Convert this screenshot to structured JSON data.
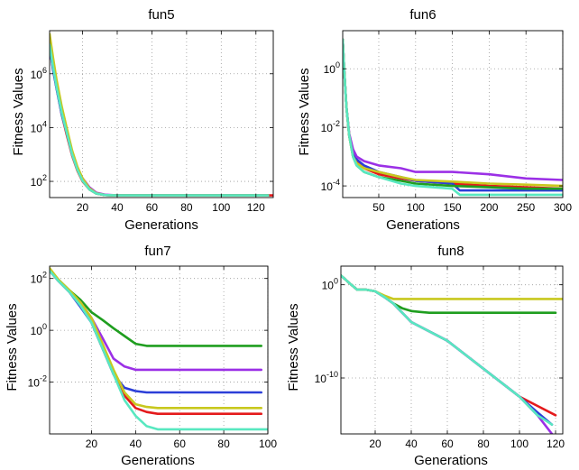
{
  "chart_data": [
    {
      "type": "line",
      "title": "fun5",
      "xlabel": "Generations",
      "ylabel": "Fitness Values",
      "yscale": "log",
      "xlim": [
        1,
        130
      ],
      "ylim": [
        25,
        40000000
      ],
      "xticks": [
        20,
        40,
        60,
        80,
        100,
        120
      ],
      "xtick_labels": [
        "20",
        "40",
        "60",
        "80",
        "100",
        "120"
      ],
      "yticks": [
        100,
        10000,
        1000000
      ],
      "ytick_labels": [
        "10^2",
        "10^4",
        "10^6"
      ],
      "grid": true,
      "series": [
        {
          "color": "#e41a1c",
          "x": [
            1,
            3,
            5,
            8,
            11,
            14,
            17,
            20,
            24,
            28,
            33,
            40,
            60,
            100,
            120,
            130
          ],
          "y": [
            10000000,
            1500000,
            300000,
            30000,
            5000,
            900,
            250,
            100,
            50,
            35,
            31,
            30,
            30,
            30,
            30,
            30
          ]
        },
        {
          "color": "#2b3ed8",
          "x": [
            1,
            3,
            5,
            8,
            11,
            14,
            17,
            20,
            24,
            28,
            33,
            40,
            60,
            100,
            120,
            127
          ],
          "y": [
            10000000,
            1400000,
            280000,
            30000,
            6000,
            1000,
            280,
            110,
            52,
            36,
            31,
            30,
            30,
            30,
            30,
            30
          ]
        },
        {
          "color": "#1f9e1f",
          "x": [
            1,
            3,
            5,
            8,
            11,
            14,
            17,
            20,
            24,
            28,
            33,
            40,
            60,
            100,
            120,
            127
          ],
          "y": [
            18000000,
            2500000,
            400000,
            45000,
            7000,
            1100,
            280,
            110,
            50,
            35,
            31,
            30,
            30,
            30,
            30,
            30
          ]
        },
        {
          "color": "#9b30e6",
          "x": [
            1,
            3,
            5,
            8,
            11,
            14,
            17,
            20,
            24,
            28,
            33,
            40,
            60,
            100,
            120,
            127
          ],
          "y": [
            15000000,
            2000000,
            350000,
            40000,
            7000,
            1200,
            320,
            130,
            60,
            38,
            32,
            30,
            30,
            30,
            30,
            30
          ]
        },
        {
          "color": "#c8c81e",
          "x": [
            1,
            3,
            5,
            8,
            11,
            14,
            17,
            20,
            24,
            28,
            33,
            40,
            60,
            100,
            120,
            127
          ],
          "y": [
            30000000,
            4000000,
            600000,
            60000,
            9000,
            1400,
            350,
            130,
            55,
            36,
            31,
            30,
            30,
            30,
            30,
            30
          ]
        },
        {
          "color": "#58e8c0",
          "x": [
            1,
            3,
            5,
            8,
            11,
            14,
            17,
            20,
            24,
            28,
            33,
            40,
            60,
            100,
            120,
            127
          ],
          "y": [
            12000000,
            1800000,
            320000,
            35000,
            6000,
            1000,
            270,
            105,
            50,
            35,
            31,
            30,
            30,
            30,
            30,
            30
          ]
        }
      ]
    },
    {
      "type": "line",
      "title": "fun6",
      "xlabel": "Generations",
      "ylabel": "Fitness Values",
      "yscale": "log",
      "xlim": [
        1,
        300
      ],
      "ylim": [
        4e-05,
        20
      ],
      "xticks": [
        50,
        100,
        150,
        200,
        250,
        300
      ],
      "xtick_labels": [
        "50",
        "100",
        "150",
        "200",
        "250",
        "300"
      ],
      "yticks": [
        0.0001,
        0.01,
        1
      ],
      "ytick_labels": [
        "10^-4",
        "10^-2",
        "10^0"
      ],
      "grid": true,
      "series": [
        {
          "color": "#e41a1c",
          "x": [
            1,
            3,
            6,
            10,
            15,
            20,
            30,
            50,
            80,
            100,
            150,
            200,
            250,
            300
          ],
          "y": [
            10,
            1,
            0.05,
            0.005,
            0.0012,
            0.0007,
            0.0004,
            0.00025,
            0.00018,
            0.00015,
            0.00012,
            0.0001,
            9e-05,
            8e-05
          ]
        },
        {
          "color": "#2b3ed8",
          "x": [
            1,
            3,
            6,
            10,
            15,
            20,
            30,
            50,
            80,
            100,
            150,
            160,
            200,
            250,
            300
          ],
          "y": [
            10,
            1,
            0.05,
            0.005,
            0.0015,
            0.0008,
            0.0005,
            0.0003,
            0.0002,
            0.00015,
            0.00012,
            7e-05,
            7e-05,
            7e-05,
            7e-05
          ]
        },
        {
          "color": "#1f9e1f",
          "x": [
            1,
            3,
            6,
            10,
            15,
            20,
            30,
            50,
            80,
            100,
            150,
            200,
            250,
            300
          ],
          "y": [
            10,
            1,
            0.05,
            0.005,
            0.001,
            0.0005,
            0.0003,
            0.0002,
            0.00015,
            0.00012,
            0.0001,
            9e-05,
            8e-05,
            8e-05
          ]
        },
        {
          "color": "#9b30e6",
          "x": [
            1,
            3,
            6,
            10,
            15,
            20,
            30,
            50,
            80,
            100,
            150,
            200,
            250,
            300
          ],
          "y": [
            10,
            1,
            0.05,
            0.006,
            0.0018,
            0.001,
            0.0007,
            0.0005,
            0.0004,
            0.0003,
            0.0003,
            0.00025,
            0.00018,
            0.00016
          ]
        },
        {
          "color": "#c8c81e",
          "x": [
            1,
            3,
            6,
            10,
            15,
            20,
            30,
            50,
            80,
            100,
            150,
            200,
            250,
            300
          ],
          "y": [
            10,
            1,
            0.05,
            0.005,
            0.001,
            0.0006,
            0.0004,
            0.0003,
            0.0002,
            0.00016,
            0.00014,
            0.00012,
            0.00011,
            0.0001
          ]
        },
        {
          "color": "#58e8c0",
          "x": [
            1,
            3,
            6,
            10,
            15,
            20,
            30,
            50,
            80,
            100,
            150,
            160,
            200,
            300
          ],
          "y": [
            10,
            1,
            0.05,
            0.005,
            0.001,
            0.0005,
            0.0003,
            0.0002,
            0.00012,
            0.0001,
            8e-05,
            5e-05,
            5e-05,
            5e-05
          ]
        }
      ]
    },
    {
      "type": "line",
      "title": "fun7",
      "xlabel": "Generations",
      "ylabel": "Fitness Values",
      "yscale": "log",
      "xlim": [
        1,
        100
      ],
      "ylim": [
        0.0001,
        300
      ],
      "xticks": [
        20,
        40,
        60,
        80,
        100
      ],
      "xtick_labels": [
        "20",
        "40",
        "60",
        "80",
        "100"
      ],
      "yticks": [
        0.01,
        1,
        100
      ],
      "ytick_labels": [
        "10^-2",
        "10^0",
        "10^2"
      ],
      "grid": true,
      "series": [
        {
          "color": "#e41a1c",
          "x": [
            1,
            5,
            10,
            15,
            20,
            25,
            30,
            35,
            40,
            45,
            50,
            60,
            80,
            97
          ],
          "y": [
            200,
            80,
            30,
            10,
            2,
            0.2,
            0.02,
            0.003,
            0.001,
            0.0007,
            0.0006,
            0.0006,
            0.0006,
            0.0006
          ]
        },
        {
          "color": "#2b3ed8",
          "x": [
            1,
            5,
            10,
            15,
            20,
            25,
            30,
            35,
            40,
            45,
            50,
            60,
            80,
            97
          ],
          "y": [
            200,
            80,
            30,
            8,
            2,
            0.2,
            0.02,
            0.006,
            0.0045,
            0.004,
            0.004,
            0.004,
            0.004,
            0.004
          ]
        },
        {
          "color": "#1f9e1f",
          "x": [
            1,
            5,
            10,
            15,
            20,
            25,
            30,
            35,
            40,
            45,
            50,
            60,
            80,
            97
          ],
          "y": [
            220,
            90,
            35,
            15,
            5,
            2.5,
            1.2,
            0.6,
            0.3,
            0.25,
            0.25,
            0.25,
            0.25,
            0.25
          ]
        },
        {
          "color": "#9b30e6",
          "x": [
            1,
            5,
            10,
            15,
            20,
            25,
            30,
            35,
            40,
            45,
            50,
            60,
            80,
            97
          ],
          "y": [
            200,
            85,
            32,
            12,
            3,
            0.5,
            0.08,
            0.04,
            0.03,
            0.03,
            0.03,
            0.03,
            0.03,
            0.03
          ]
        },
        {
          "color": "#c8c81e",
          "x": [
            1,
            5,
            10,
            15,
            20,
            25,
            30,
            35,
            40,
            45,
            50,
            60,
            80,
            97
          ],
          "y": [
            250,
            90,
            35,
            12,
            3,
            0.3,
            0.03,
            0.004,
            0.0014,
            0.0011,
            0.001,
            0.001,
            0.001,
            0.001
          ]
        },
        {
          "color": "#58e8c0",
          "x": [
            1,
            5,
            10,
            15,
            20,
            25,
            30,
            35,
            40,
            45,
            50,
            60,
            80,
            100
          ],
          "y": [
            200,
            80,
            30,
            9,
            2,
            0.2,
            0.02,
            0.002,
            0.0005,
            0.0002,
            0.00015,
            0.00015,
            0.00015,
            0.00015
          ]
        }
      ]
    },
    {
      "type": "line",
      "title": "fun8",
      "xlabel": "Generations",
      "ylabel": "Fitness Values",
      "yscale": "log",
      "xlim": [
        1,
        124
      ],
      "ylim": [
        1e-16,
        100
      ],
      "xticks": [
        20,
        40,
        60,
        80,
        100,
        120
      ],
      "xtick_labels": [
        "20",
        "40",
        "60",
        "80",
        "100",
        "120"
      ],
      "yticks": [
        1e-10,
        1
      ],
      "ytick_labels": [
        "10^-10",
        "10^0"
      ],
      "grid": true,
      "series": [
        {
          "color": "#e41a1c",
          "x": [
            1,
            5,
            10,
            15,
            20,
            25,
            30,
            40,
            60,
            80,
            100,
            110,
            120
          ],
          "y": [
            10,
            2,
            0.3,
            0.3,
            0.2,
            0.05,
            0.01,
            0.0001,
            1e-06,
            1e-09,
            1e-12,
            1e-13,
            1e-14
          ]
        },
        {
          "color": "#2b3ed8",
          "x": [
            1,
            5,
            10,
            15,
            20,
            25,
            30,
            40,
            60,
            80,
            100,
            110,
            118
          ],
          "y": [
            10,
            2,
            0.3,
            0.3,
            0.2,
            0.05,
            0.01,
            0.0001,
            1e-06,
            1e-09,
            1e-12,
            2e-14,
            1e-15
          ]
        },
        {
          "color": "#1f9e1f",
          "x": [
            1,
            5,
            10,
            15,
            20,
            25,
            30,
            35,
            40,
            45,
            50,
            60,
            80,
            100,
            120
          ],
          "y": [
            10,
            2,
            0.3,
            0.3,
            0.2,
            0.05,
            0.01,
            0.003,
            0.0015,
            0.0012,
            0.001,
            0.001,
            0.001,
            0.001,
            0.001
          ]
        },
        {
          "color": "#9b30e6",
          "x": [
            1,
            5,
            10,
            15,
            20,
            25,
            30,
            40,
            60,
            80,
            100,
            110,
            118
          ],
          "y": [
            10,
            2,
            0.3,
            0.3,
            0.2,
            0.05,
            0.01,
            0.0001,
            1e-06,
            1e-09,
            1e-12,
            1e-14,
            1e-16
          ]
        },
        {
          "color": "#c8c81e",
          "x": [
            1,
            5,
            10,
            15,
            20,
            25,
            30,
            35,
            40,
            60,
            80,
            100,
            124
          ],
          "y": [
            10,
            2,
            0.3,
            0.3,
            0.2,
            0.07,
            0.03,
            0.03,
            0.03,
            0.03,
            0.03,
            0.03,
            0.03
          ]
        },
        {
          "color": "#58e8c0",
          "x": [
            1,
            5,
            10,
            15,
            20,
            25,
            30,
            40,
            60,
            80,
            100,
            110,
            118
          ],
          "y": [
            10,
            2,
            0.3,
            0.3,
            0.2,
            0.05,
            0.01,
            0.0001,
            1e-06,
            1e-09,
            1e-12,
            1e-14,
            1e-15
          ]
        }
      ]
    }
  ]
}
